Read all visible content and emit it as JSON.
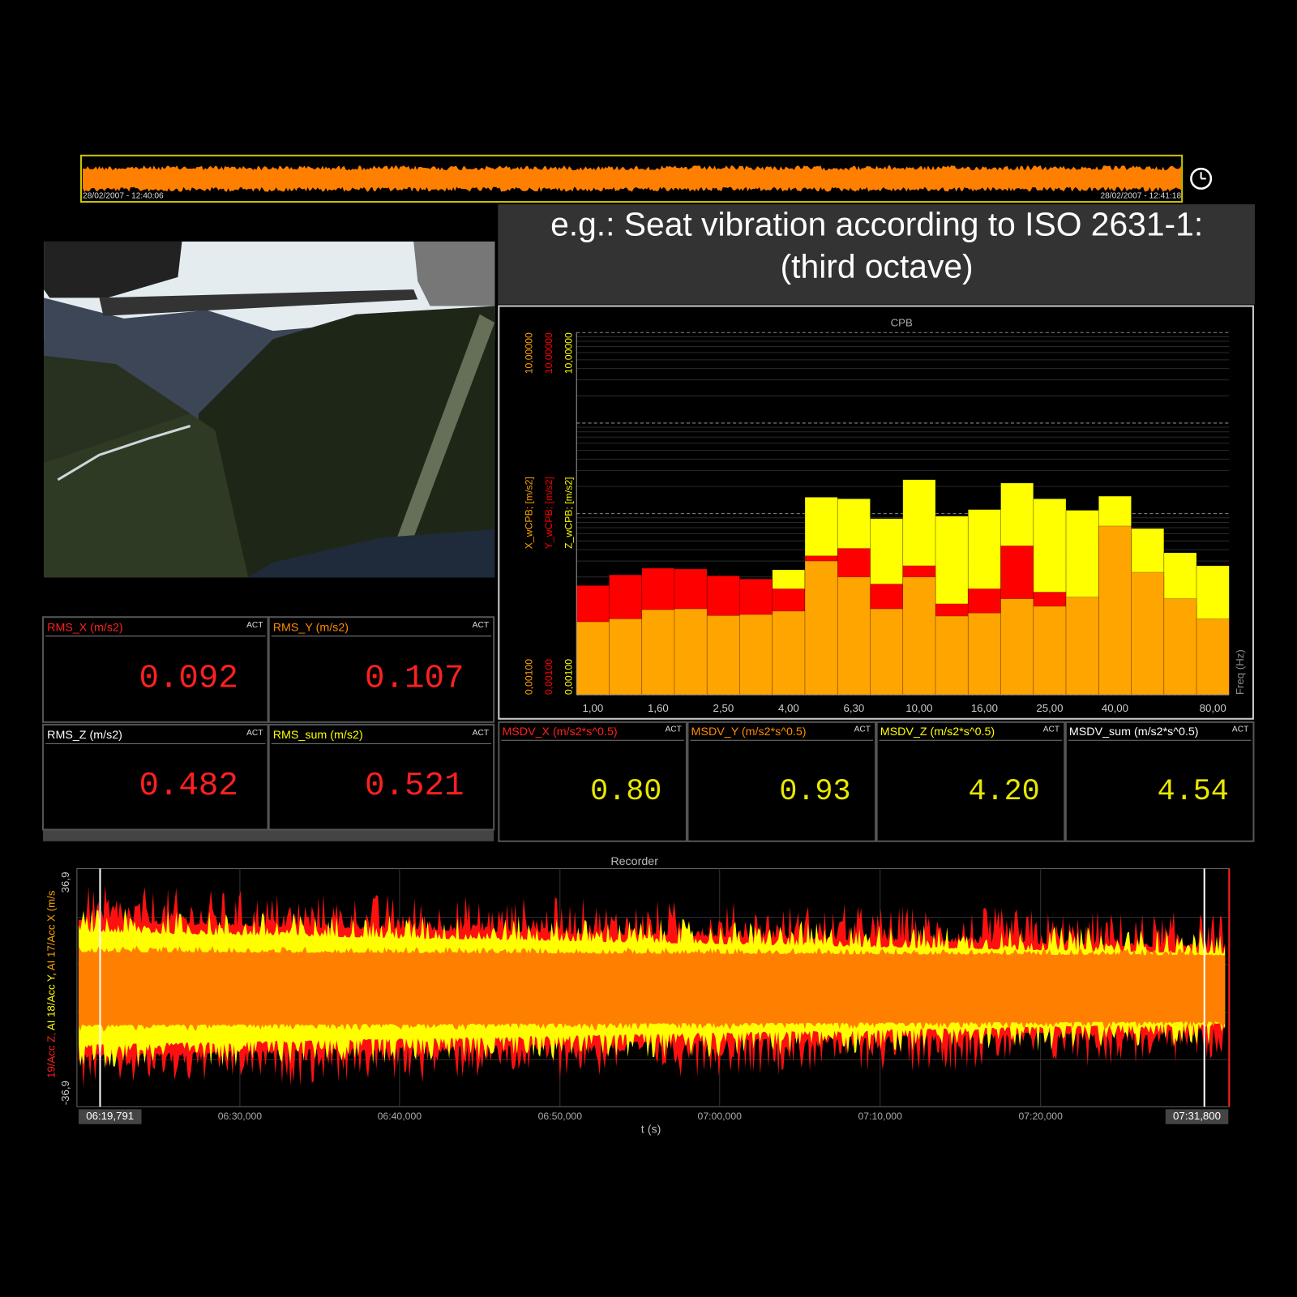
{
  "overview": {
    "start": "28/02/2007 - 12:40:06",
    "end": "28/02/2007 - 12:41:18"
  },
  "header": {
    "title": [
      "e.g.: Seat vibration according to ISO 2631-1:",
      "(third octave)"
    ]
  },
  "cpb": {
    "type": "bar",
    "title": "CPB",
    "x_label": "Freq (Hz)",
    "log_y": true,
    "grid": true,
    "categories": [
      "1,00",
      null,
      "1,60",
      null,
      "2,50",
      null,
      "4,00",
      null,
      "6,30",
      null,
      "10,00",
      null,
      "16,00",
      null,
      "25,00",
      null,
      "40,00",
      null,
      null,
      "80,00"
    ],
    "ylim": [
      0.001,
      10
    ],
    "yticks": [
      {
        "value": 0.001,
        "label": "0,00100"
      },
      {
        "value": 10,
        "label": "10,00000"
      }
    ],
    "series": [
      {
        "name": "Z_wCPB; [m/s2]",
        "color": "#ffff00",
        "values": [
          0.012,
          0.015,
          0.018,
          0.018,
          0.015,
          0.014,
          0.024,
          0.152,
          0.146,
          0.088,
          0.237,
          0.094,
          0.111,
          0.218,
          0.146,
          0.109,
          0.156,
          0.0685,
          0.037,
          0.0266
        ]
      },
      {
        "name": "Y_wCPB; [m/s2]",
        "color": "#ff0000",
        "values": [
          0.0161,
          0.0211,
          0.025,
          0.0245,
          0.0206,
          0.019,
          0.0148,
          0.0342,
          0.0413,
          0.0167,
          0.0266,
          0.0101,
          0.0148,
          0.0441,
          0.0136,
          0.011,
          0.06,
          0.02,
          0.01,
          0.006
        ]
      },
      {
        "name": "X_wCPB; [m/s2]",
        "color": "#ffa500",
        "values": [
          0.0064,
          0.0069,
          0.0087,
          0.0089,
          0.0075,
          0.0077,
          0.0084,
          0.03,
          0.02,
          0.0089,
          0.02,
          0.0074,
          0.008,
          0.0115,
          0.0095,
          0.012,
          0.073,
          0.0225,
          0.0115,
          0.0069
        ]
      }
    ]
  },
  "rms": [
    {
      "label": "RMS_X (m/s2)",
      "status": "ACT",
      "value": "0.092",
      "color": "#ff2020"
    },
    {
      "label": "RMS_Y (m/s2)",
      "status": "ACT",
      "value": "0.107",
      "color": "#ff8c00"
    },
    {
      "label": "RMS_Z (m/s2)",
      "status": "ACT",
      "value": "0.482",
      "color": "#ffffff"
    },
    {
      "label": "RMS_sum (m/s2)",
      "status": "ACT",
      "value": "0.521",
      "color": "#ffff00"
    }
  ],
  "msdv": [
    {
      "label": "MSDV_X (m/s2*s^0.5)",
      "status": "ACT",
      "value": "0.80",
      "color": "#ff2020"
    },
    {
      "label": "MSDV_Y (m/s2*s^0.5)",
      "status": "ACT",
      "value": "0.93",
      "color": "#ff8c00"
    },
    {
      "label": "MSDV_Z (m/s2*s^0.5)",
      "status": "ACT",
      "value": "4.20",
      "color": "#ffff00"
    },
    {
      "label": "MSDV_sum (m/s2*s^0.5)",
      "status": "ACT",
      "value": "4.54",
      "color": "#ffffff"
    }
  ],
  "recorder": {
    "title": "Recorder",
    "y_label": [
      {
        "text": "19/Acc Z,",
        "color": "#ff2020"
      },
      {
        "text": " AI 18/Acc Y,",
        "color": "#ffff00"
      },
      {
        "text": " AI 17/Acc X (m/s",
        "color": "#ffa500"
      }
    ],
    "ytick_labels": [
      "36,9",
      "-36,9"
    ],
    "xtick_labels": [
      "06:19,791",
      "06:30,000",
      "06:40,000",
      "06:50,000",
      "07:00,000",
      "07:10,000",
      "07:20,000",
      "07:31,800"
    ],
    "x_label": "t (s)"
  }
}
